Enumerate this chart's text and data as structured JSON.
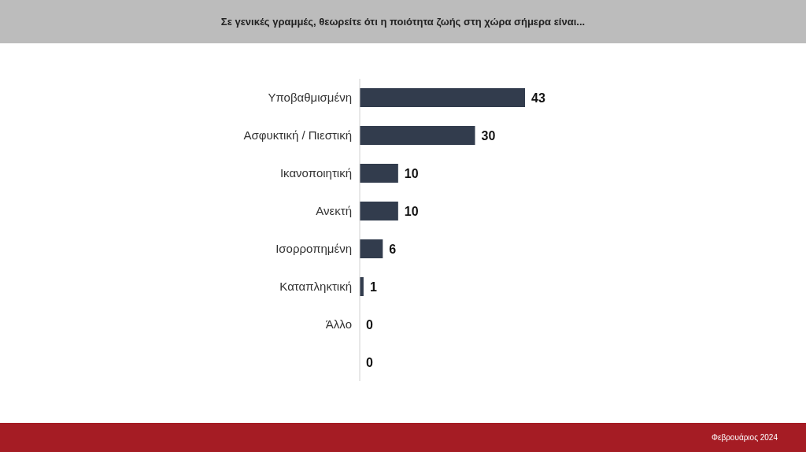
{
  "chart_data": {
    "type": "bar",
    "orientation": "horizontal",
    "title": "Σε γενικές γραμμές, θεωρείτε ότι η ποιότητα ζωής στη χώρα σήμερα είναι...",
    "categories": [
      "Υποβαθμισμένη",
      "Ασφυκτική / Πιεστική",
      "Ικανοποιητική",
      "Ανεκτή",
      "Ισορροπημένη",
      "Καταπληκτική",
      "Άλλο",
      null
    ],
    "values": [
      43,
      30,
      10,
      10,
      6,
      1,
      0,
      0
    ],
    "color": "#323c4d",
    "data_labels": true,
    "annotations": [
      "Φεβρουάριος 2024"
    ]
  }
}
